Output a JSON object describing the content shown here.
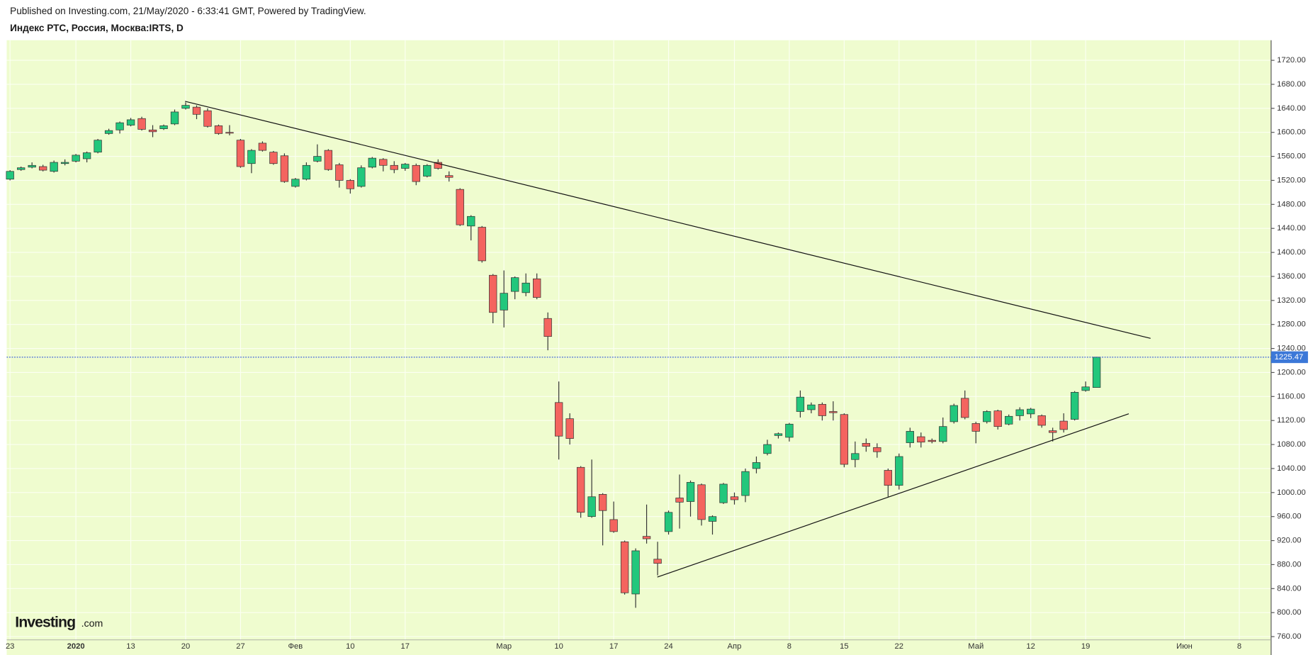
{
  "chart_data": {
    "type": "candlestick",
    "subtitle": "Published on Investing.com, 21/May/2020 - 6:33:41 GMT, Powered by TradingView.",
    "title": "Индекс РТС, Россия, Москва:IRTS, D",
    "logo": {
      "name": "Investing",
      "suffix": ".com"
    },
    "categories": [
      "23",
      null,
      null,
      null,
      null,
      null,
      "2020",
      null,
      null,
      null,
      null,
      "13",
      null,
      null,
      null,
      null,
      "20",
      null,
      null,
      null,
      null,
      "27",
      null,
      null,
      null,
      null,
      "Фев",
      null,
      null,
      null,
      null,
      "10",
      null,
      null,
      null,
      null,
      "17",
      null,
      null,
      null,
      null,
      null,
      null,
      null,
      null,
      "Мар",
      null,
      null,
      null,
      null,
      "10",
      null,
      null,
      null,
      null,
      "17",
      null,
      null,
      null,
      null,
      "24",
      null,
      null,
      null,
      null,
      null,
      "Апр",
      null,
      null,
      null,
      null,
      "8",
      null,
      null,
      null,
      null,
      "15",
      null,
      null,
      null,
      null,
      "22",
      null,
      null,
      null,
      null,
      null,
      null,
      "Май",
      null,
      null,
      null,
      null,
      "12",
      null,
      null,
      null,
      null,
      "19",
      null,
      null,
      null,
      null,
      null,
      null,
      null,
      null,
      "Июн",
      null,
      null,
      null,
      null,
      "8",
      null,
      null
    ],
    "open": [
      1522,
      1538,
      1542,
      1543,
      1535,
      1548,
      1552,
      1556,
      1567,
      1598,
      1604,
      1612,
      1623,
      1604,
      1606,
      1614,
      1640,
      1642,
      1636,
      1611,
      1600,
      1587,
      1548,
      1582,
      1567,
      1561,
      1510,
      1522,
      1552,
      1570,
      1546,
      1520,
      1510,
      1542,
      1555,
      1545,
      1540,
      1545,
      1527,
      1550,
      1528,
      1505,
      1444,
      1442,
      1362,
      1304,
      1335,
      1333,
      1356,
      1290,
      1150,
      1123,
      1042,
      960,
      997,
      955,
      918,
      831,
      927,
      889,
      935,
      991,
      985,
      1013,
      952,
      983,
      993,
      995,
      1040,
      1065,
      1095,
      1092,
      1135,
      1138,
      1147,
      1135,
      1130,
      1055,
      1082,
      1075,
      1037,
      1012,
      1083,
      1093,
      1087,
      1085,
      1118,
      1157,
      1115,
      1118,
      1136,
      1114,
      1128,
      1131,
      1128,
      1103,
      1119,
      1122,
      1170,
      1175,
      null,
      null,
      null,
      null,
      null,
      null,
      null,
      null,
      null,
      null,
      null,
      null,
      null,
      null,
      null
    ],
    "high": [
      1537,
      1543,
      1550,
      1546,
      1553,
      1555,
      1564,
      1568,
      1589,
      1606,
      1618,
      1624,
      1626,
      1612,
      1613,
      1638,
      1650,
      1645,
      1640,
      1613,
      1612,
      1589,
      1572,
      1585,
      1569,
      1565,
      1524,
      1550,
      1580,
      1572,
      1549,
      1522,
      1545,
      1559,
      1557,
      1552,
      1549,
      1548,
      1547,
      1555,
      1535,
      1507,
      1462,
      1444,
      1364,
      1370,
      1360,
      1365,
      1365,
      1300,
      1185,
      1132,
      1044,
      1055,
      999,
      985,
      920,
      907,
      980,
      918,
      970,
      1030,
      1020,
      1015,
      962,
      1016,
      1000,
      1040,
      1060,
      1088,
      1100,
      1116,
      1170,
      1150,
      1150,
      1152,
      1132,
      1085,
      1090,
      1082,
      1040,
      1065,
      1108,
      1100,
      1090,
      1125,
      1148,
      1170,
      1118,
      1137,
      1138,
      1130,
      1142,
      1141,
      1130,
      1108,
      1132,
      1169,
      1185,
      1226,
      null,
      null,
      null,
      null,
      null,
      null,
      null,
      null,
      null,
      null,
      null,
      null,
      null,
      null,
      null
    ],
    "low": [
      1520,
      1536,
      1540,
      1535,
      1533,
      1545,
      1550,
      1550,
      1565,
      1596,
      1598,
      1610,
      1603,
      1592,
      1604,
      1612,
      1638,
      1622,
      1608,
      1596,
      1595,
      1541,
      1532,
      1568,
      1546,
      1516,
      1508,
      1520,
      1550,
      1536,
      1508,
      1498,
      1508,
      1540,
      1535,
      1532,
      1536,
      1512,
      1525,
      1538,
      1518,
      1444,
      1420,
      1383,
      1282,
      1275,
      1322,
      1327,
      1322,
      1237,
      1055,
      1080,
      958,
      958,
      912,
      933,
      830,
      808,
      915,
      862,
      930,
      940,
      960,
      945,
      930,
      981,
      980,
      984,
      1032,
      1062,
      1090,
      1085,
      1125,
      1132,
      1120,
      1120,
      1042,
      1042,
      1068,
      1058,
      993,
      1005,
      1075,
      1075,
      1082,
      1082,
      1115,
      1122,
      1082,
      1115,
      1105,
      1112,
      1120,
      1124,
      1108,
      1085,
      1100,
      1120,
      1168,
      1175,
      null,
      null,
      null,
      null,
      null,
      null,
      null,
      null,
      null,
      null,
      null,
      null,
      null,
      null,
      null
    ],
    "close": [
      1535,
      1541,
      1545,
      1537,
      1550,
      1550,
      1562,
      1566,
      1587,
      1603,
      1616,
      1621,
      1605,
      1601,
      1611,
      1634,
      1645,
      1630,
      1610,
      1598,
      1599,
      1543,
      1570,
      1570,
      1548,
      1518,
      1522,
      1545,
      1560,
      1538,
      1520,
      1506,
      1541,
      1557,
      1545,
      1538,
      1547,
      1518,
      1545,
      1540,
      1525,
      1446,
      1460,
      1386,
      1300,
      1332,
      1358,
      1349,
      1325,
      1260,
      1094,
      1090,
      967,
      993,
      970,
      935,
      833,
      903,
      923,
      882,
      967,
      984,
      1017,
      955,
      960,
      1014,
      988,
      1035,
      1050,
      1080,
      1098,
      1114,
      1159,
      1146,
      1128,
      1133,
      1047,
      1065,
      1077,
      1068,
      1012,
      1060,
      1102,
      1084,
      1085,
      1110,
      1145,
      1125,
      1102,
      1135,
      1110,
      1127,
      1138,
      1139,
      1112,
      1100,
      1105,
      1167,
      1176,
      1225.47,
      null,
      null,
      null,
      null,
      null,
      null,
      null,
      null,
      null,
      null,
      null,
      null,
      null,
      null,
      null
    ],
    "up_color": "#22c77c",
    "down_color": "#f4645f",
    "ylim": [
      754.5,
      1753.5
    ],
    "yticks": [
      {
        "value": 760,
        "label": "760.00"
      },
      {
        "value": 800,
        "label": "800.00"
      },
      {
        "value": 840,
        "label": "840.00"
      },
      {
        "value": 880,
        "label": "880.00"
      },
      {
        "value": 920,
        "label": "920.00"
      },
      {
        "value": 960,
        "label": "960.00"
      },
      {
        "value": 1000,
        "label": "1000.00"
      },
      {
        "value": 1040,
        "label": "1040.00"
      },
      {
        "value": 1080,
        "label": "1080.00"
      },
      {
        "value": 1120,
        "label": "1120.00"
      },
      {
        "value": 1160,
        "label": "1160.00"
      },
      {
        "value": 1200,
        "label": "1200.00"
      },
      {
        "value": 1240,
        "label": "1240.00"
      },
      {
        "value": 1280,
        "label": "1280.00"
      },
      {
        "value": 1320,
        "label": "1320.00"
      },
      {
        "value": 1360,
        "label": "1360.00"
      },
      {
        "value": 1400,
        "label": "1400.00"
      },
      {
        "value": 1440,
        "label": "1440.00"
      },
      {
        "value": 1480,
        "label": "1480.00"
      },
      {
        "value": 1520,
        "label": "1520.00"
      },
      {
        "value": 1560,
        "label": "1560.00"
      },
      {
        "value": 1600,
        "label": "1600.00"
      },
      {
        "value": 1640,
        "label": "1640.00"
      },
      {
        "value": 1680,
        "label": "1680.00"
      },
      {
        "value": 1720,
        "label": "1720.00"
      }
    ],
    "grid": true
  }
}
